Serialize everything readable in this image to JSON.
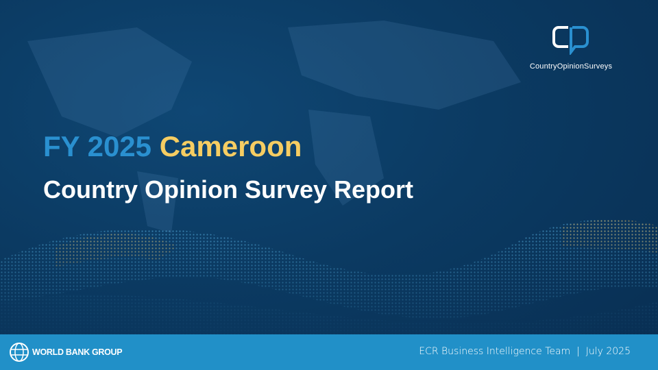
{
  "brand": {
    "logo_text": "CountryOpinionSurveys",
    "logo_colors": [
      "#ffffff",
      "#2a90d0"
    ]
  },
  "title": {
    "year": "FY 2025",
    "country": "Cameroon",
    "subtitle": "Country Opinion Survey Report"
  },
  "footer": {
    "organization": "WORLD BANK GROUP",
    "team": "ECR Business Intelligence Team",
    "separator": "|",
    "date": "July 2025"
  },
  "colors": {
    "background": "#0b3a62",
    "footer": "#2190c8",
    "accent_blue": "#2a90d0",
    "accent_yellow": "#f6cd62"
  }
}
